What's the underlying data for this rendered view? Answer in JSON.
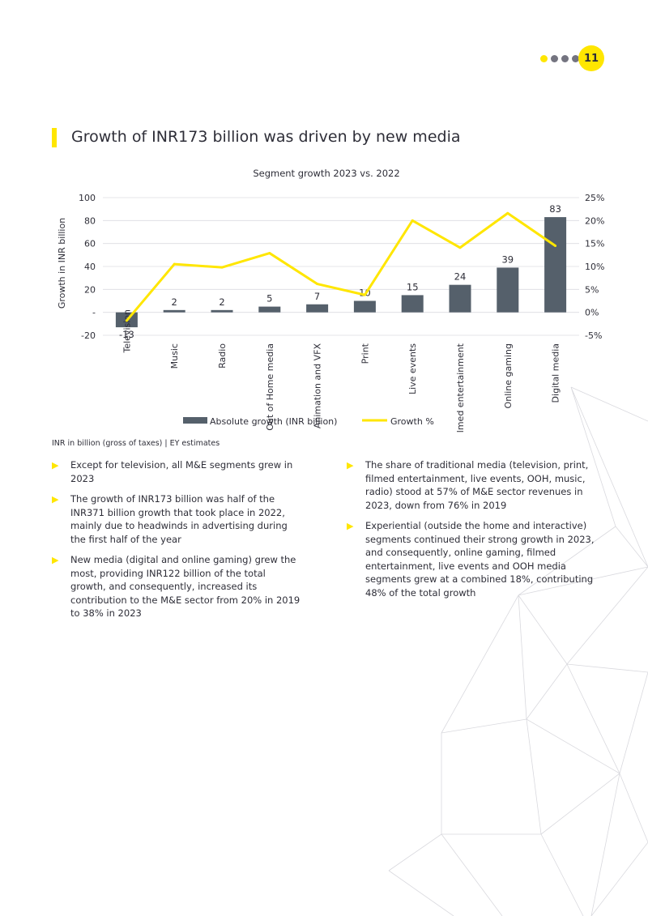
{
  "page_number": "11",
  "title": "Growth of INR173 billion was driven by new media",
  "colors": {
    "accent": "#ffe600",
    "bar": "#55606b",
    "text": "#2e2e38",
    "dot_gray": "#747480"
  },
  "chart_data": {
    "type": "bar",
    "title": "Segment growth 2023 vs. 2022",
    "categories": [
      "Television",
      "Music",
      "Radio",
      "Out of Home media",
      "Animation and VFX",
      "Print",
      "Live events",
      "Filmed entertainment",
      "Online gaming",
      "Digital media"
    ],
    "series": [
      {
        "name": "Absolute growth (INR billion)",
        "type": "bar",
        "axis": "left",
        "values": [
          -13,
          2,
          2,
          5,
          7,
          10,
          15,
          24,
          39,
          83
        ],
        "labels": [
          "-13",
          "2",
          "2",
          "5",
          "7",
          "10",
          "15",
          "24",
          "39",
          "83"
        ]
      },
      {
        "name": "Growth %",
        "type": "line",
        "axis": "right",
        "values": [
          -1.8,
          10.5,
          9.8,
          12.9,
          6.2,
          3.8,
          20.0,
          14.1,
          21.6,
          14.5
        ]
      }
    ],
    "ylabel": "Growth in INR billion",
    "ylim": [
      -20,
      100
    ],
    "yticks": [
      "-20",
      "-",
      "20",
      "40",
      "60",
      "80",
      "100"
    ],
    "y2lim": [
      -5,
      25
    ],
    "y2ticks": [
      "-5%",
      "0%",
      "5%",
      "10%",
      "15%",
      "20%",
      "25%"
    ],
    "grid": true,
    "legend": "bottom"
  },
  "source_note": "INR in billion (gross of taxes) | EY estimates",
  "bullets_left": [
    "Except for television, all M&E segments grew in 2023",
    "The growth of INR173 billion was half of the INR371 billion growth that took place in 2022, mainly due to headwinds in advertising during the first half of the year",
    "New media (digital and online gaming) grew the most, providing INR122 billion of the total growth, and consequently, increased its contribution to the M&E sector from 20% in 2019 to 38% in 2023"
  ],
  "bullets_right": [
    "The share of traditional media (television, print, filmed entertainment, live events, OOH, music, radio) stood at 57% of M&E sector revenues in 2023, down from 76% in 2019",
    "Experiential (outside the home and interactive) segments continued their strong growth in 2023, and consequently, online gaming, filmed entertainment, live events and OOH media segments grew at a combined 18%, contributing 48% of the total growth"
  ]
}
